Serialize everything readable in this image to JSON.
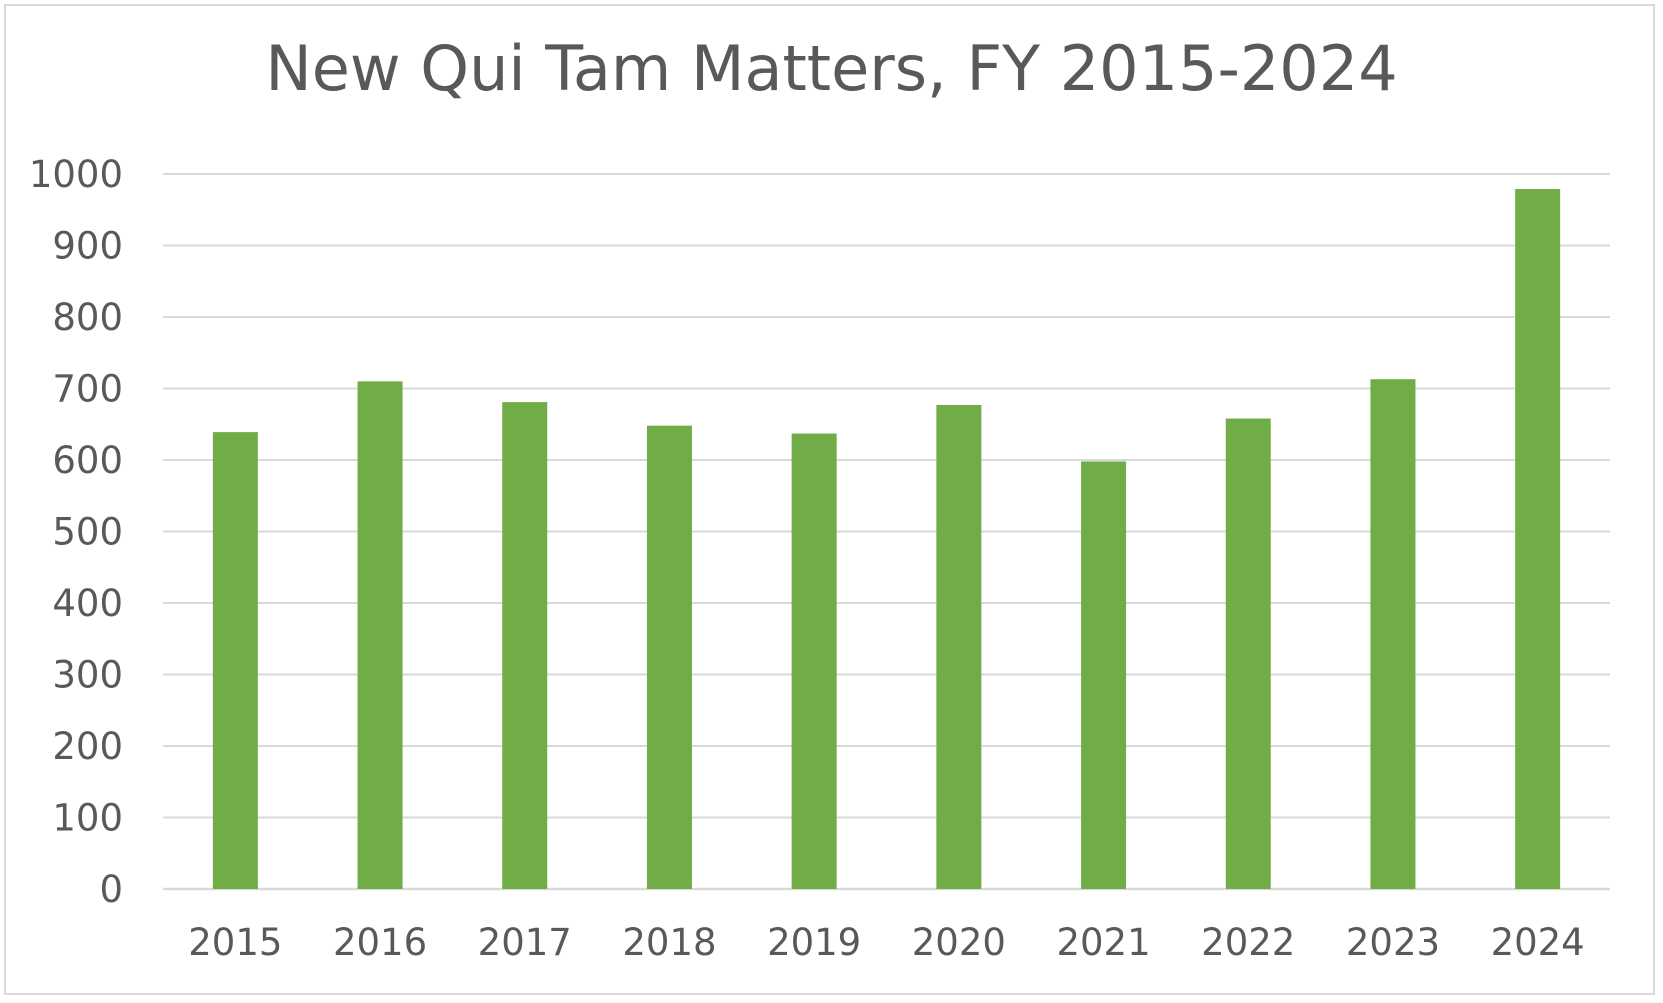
{
  "chart_data": {
    "type": "bar",
    "title": "New Qui Tam Matters, FY 2015-2024",
    "xlabel": "",
    "ylabel": "",
    "categories": [
      "2015",
      "2016",
      "2017",
      "2018",
      "2019",
      "2020",
      "2021",
      "2022",
      "2023",
      "2024"
    ],
    "series": [
      {
        "values": [
          639,
          710,
          681,
          648,
          637,
          677,
          598,
          658,
          713,
          979
        ]
      }
    ],
    "ylim": [
      0,
      1000
    ],
    "yticks": [
      0,
      100,
      200,
      300,
      400,
      500,
      600,
      700,
      800,
      900,
      1000
    ],
    "grid": true,
    "legend": "none",
    "colors": {
      "bar": "#70ad47",
      "grid": "#d9d9d9",
      "text": "#595959",
      "border": "#d9d9d9"
    }
  }
}
